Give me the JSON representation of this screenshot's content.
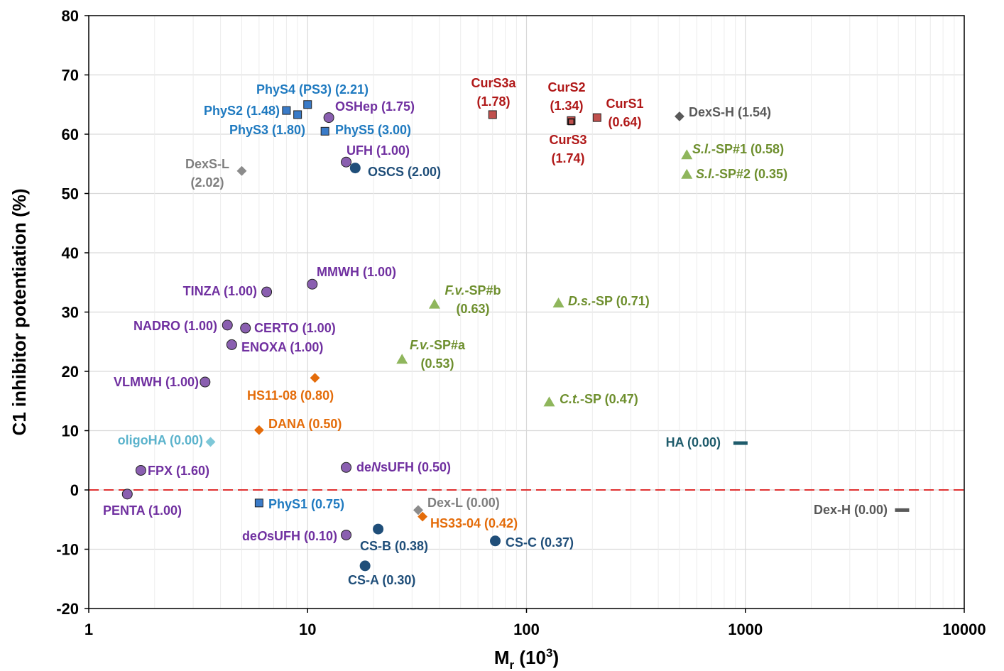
{
  "chart_data": {
    "type": "scatter",
    "title": "",
    "xlabel_main": "M",
    "xlabel_sub": "r",
    "xlabel_rest": " (10",
    "xlabel_sup": "3",
    "xlabel_end": ")",
    "ylabel": "C1 inhibitor potentiation (%)",
    "x_scale": "log",
    "xlim": [
      1,
      10000
    ],
    "ylim": [
      -20,
      80
    ],
    "x_ticks": [
      1,
      10,
      100,
      1000,
      10000
    ],
    "x_tick_labels": [
      "1",
      "10",
      "100",
      "1000",
      "10000"
    ],
    "y_ticks": [
      -20,
      -10,
      0,
      10,
      20,
      30,
      40,
      50,
      60,
      70,
      80
    ],
    "y_tick_labels": [
      "-20",
      "-10",
      "0",
      "10",
      "20",
      "30",
      "40",
      "50",
      "60",
      "70",
      "80"
    ],
    "grid": "on",
    "zero_line": {
      "value": 0,
      "color": "#e03030",
      "style": "dashed"
    },
    "colors": {
      "blue": "#3a7bc8",
      "blue_text": "#1f7ac0",
      "purple": "#8a5fb0",
      "purple_text": "#7030a0",
      "navy": "#1f4e79",
      "red": "#c0504d",
      "red_text": "#b01818",
      "green": "#8fb65c",
      "green_text": "#6e8f2e",
      "orange": "#e46c0a",
      "teal": "#1e5b6b",
      "gray_dark": "#595959",
      "gray": "#8c8c8c",
      "gray_text": "#7f7f7f",
      "cyan": "#7ec8d8"
    },
    "points": [
      {
        "name": "PhyS4 (PS3) (2.21)",
        "x": 10,
        "y": 65,
        "marker": "square",
        "color": "#3a7bc8",
        "text_color": "#1f7ac0"
      },
      {
        "name": "PhyS2 (1.48)",
        "x": 8,
        "y": 64,
        "marker": "square",
        "color": "#3a7bc8",
        "text_color": "#1f7ac0"
      },
      {
        "name": "PhyS3 (1.80)",
        "x": 9,
        "y": 63.3,
        "marker": "square",
        "color": "#3a7bc8",
        "text_color": "#1f7ac0"
      },
      {
        "name": "PhyS5 (3.00)",
        "x": 12,
        "y": 60.5,
        "marker": "square",
        "color": "#3a7bc8",
        "text_color": "#1f7ac0"
      },
      {
        "name": "PhyS1 (0.75)",
        "x": 6,
        "y": -2.2,
        "marker": "square",
        "color": "#3a7bc8",
        "text_color": "#1f7ac0"
      },
      {
        "name": "OSHep (1.75)",
        "x": 12.5,
        "y": 62.8,
        "marker": "circle",
        "color": "#8a5fb0",
        "text_color": "#7030a0"
      },
      {
        "name": "UFH (1.00)",
        "x": 15,
        "y": 55.3,
        "marker": "circle",
        "color": "#8a5fb0",
        "text_color": "#7030a0"
      },
      {
        "name": "OSCS (2.00)",
        "x": 16.5,
        "y": 54.3,
        "marker": "dot",
        "color": "#1f4e79",
        "text_color": "#1f4e79"
      },
      {
        "name": "DexS-L (2.02)",
        "label_lines": [
          "DexS-L",
          "(2.02)"
        ],
        "x": 5,
        "y": 53.8,
        "marker": "diamond",
        "color": "#8c8c8c",
        "text_color": "#7f7f7f"
      },
      {
        "name": "CurS3a (1.78)",
        "label_lines": [
          "CurS3a",
          "(1.78)"
        ],
        "x": 70,
        "y": 63.3,
        "marker": "square",
        "color": "#c0504d",
        "text_color": "#b01818"
      },
      {
        "name": "CurS2 (1.34)",
        "label_lines": [
          "CurS2",
          "(1.34)"
        ],
        "x": 160,
        "y": 62.3,
        "marker": "square",
        "color": "#c0504d",
        "text_color": "#b01818"
      },
      {
        "name": "CurS3 (1.74)",
        "label_lines": [
          "CurS3",
          "(1.74)"
        ],
        "x": 160,
        "y": 62.1,
        "marker": "square-open",
        "color": "#c0504d",
        "text_color": "#b01818"
      },
      {
        "name": "CurS1 (0.64)",
        "label_lines": [
          "CurS1",
          "(0.64)"
        ],
        "x": 210,
        "y": 62.8,
        "marker": "square",
        "color": "#c0504d",
        "text_color": "#b01818"
      },
      {
        "name": "DexS-H (1.54)",
        "x": 500,
        "y": 63,
        "marker": "diamond",
        "color": "#595959",
        "text_color": "#595959"
      },
      {
        "name": "S.l.-SP#1 (0.58)",
        "name_italic": "S.l.",
        "name_rest": "-SP#1 (0.58)",
        "x": 540,
        "y": 56.5,
        "marker": "triangle",
        "color": "#8fb65c",
        "text_color": "#6e8f2e"
      },
      {
        "name": "S.l.-SP#2 (0.35)",
        "name_italic": "S.l.",
        "name_rest": "-SP#2 (0.35)",
        "x": 540,
        "y": 53.2,
        "marker": "triangle",
        "color": "#8fb65c",
        "text_color": "#6e8f2e"
      },
      {
        "name": "MMWH (1.00)",
        "x": 10.5,
        "y": 34.7,
        "marker": "circle",
        "color": "#8a5fb0",
        "text_color": "#7030a0"
      },
      {
        "name": "TINZA (1.00)",
        "x": 6.5,
        "y": 33.4,
        "marker": "circle",
        "color": "#8a5fb0",
        "text_color": "#7030a0"
      },
      {
        "name": "NADRO (1.00)",
        "x": 4.3,
        "y": 27.8,
        "marker": "circle",
        "color": "#8a5fb0",
        "text_color": "#7030a0"
      },
      {
        "name": "CERTO (1.00)",
        "x": 5.2,
        "y": 27.3,
        "marker": "circle",
        "color": "#8a5fb0",
        "text_color": "#7030a0"
      },
      {
        "name": "ENOXA (1.00)",
        "x": 4.5,
        "y": 24.5,
        "marker": "circle",
        "color": "#8a5fb0",
        "text_color": "#7030a0"
      },
      {
        "name": "VLMWH (1.00)",
        "x": 3.4,
        "y": 18.2,
        "marker": "circle",
        "color": "#8a5fb0",
        "text_color": "#7030a0"
      },
      {
        "name": "F.v.-SP#b (0.63)",
        "name_italic": "F.v.",
        "name_rest": "-SP#b",
        "line2": "(0.63)",
        "x": 38,
        "y": 31.3,
        "marker": "triangle",
        "color": "#8fb65c",
        "text_color": "#6e8f2e"
      },
      {
        "name": "D.s.-SP (0.71)",
        "name_italic": "D.s.",
        "name_rest": "-SP (0.71)",
        "x": 140,
        "y": 31.5,
        "marker": "triangle",
        "color": "#8fb65c",
        "text_color": "#6e8f2e"
      },
      {
        "name": "F.v.-SP#a (0.53)",
        "name_italic": "F.v.",
        "name_rest": "-SP#a",
        "line2": "(0.53)",
        "x": 27,
        "y": 22,
        "marker": "triangle",
        "color": "#8fb65c",
        "text_color": "#6e8f2e"
      },
      {
        "name": "C.t.-SP (0.47)",
        "name_italic": "C.t.",
        "name_rest": "-SP (0.47)",
        "x": 127,
        "y": 14.8,
        "marker": "triangle",
        "color": "#8fb65c",
        "text_color": "#6e8f2e"
      },
      {
        "name": "HS11-08 (0.80)",
        "x": 10.8,
        "y": 18.9,
        "marker": "diamond",
        "color": "#e46c0a",
        "text_color": "#e46c0a"
      },
      {
        "name": "DANA (0.50)",
        "x": 6,
        "y": 10.1,
        "marker": "diamond",
        "color": "#e46c0a",
        "text_color": "#e46c0a"
      },
      {
        "name": "oligoHA (0.00)",
        "x": 3.6,
        "y": 8.1,
        "marker": "diamond",
        "color": "#7ec8d8",
        "text_color": "#5bb3cc"
      },
      {
        "name": "HA (0.00)",
        "x": 950,
        "y": 7.9,
        "marker": "dash",
        "color": "#1e5b6b",
        "text_color": "#1e5b6b"
      },
      {
        "name": "FPX (1.60)",
        "x": 1.73,
        "y": 3.3,
        "marker": "circle",
        "color": "#8a5fb0",
        "text_color": "#7030a0"
      },
      {
        "name": "deNsUFH (0.50)",
        "name_a": "de",
        "name_italic": "N",
        "name_rest": "sUFH (0.50)",
        "x": 15,
        "y": 3.8,
        "marker": "circle",
        "color": "#8a5fb0",
        "text_color": "#7030a0"
      },
      {
        "name": "PENTA (1.00)",
        "x": 1.5,
        "y": -0.7,
        "marker": "circle",
        "color": "#8a5fb0",
        "text_color": "#7030a0"
      },
      {
        "name": "Dex-L (0.00)",
        "x": 32,
        "y": -3.4,
        "marker": "diamond",
        "color": "#8c8c8c",
        "text_color": "#7f7f7f"
      },
      {
        "name": "HS33-04 (0.42)",
        "x": 33.5,
        "y": -4.5,
        "marker": "diamond",
        "color": "#e46c0a",
        "text_color": "#e46c0a"
      },
      {
        "name": "Dex-H (0.00)",
        "x": 5200,
        "y": -3.4,
        "marker": "dash",
        "color": "#595959",
        "text_color": "#595959"
      },
      {
        "name": "deOsUFH (0.10)",
        "name_a": "de",
        "name_italic": "O",
        "name_rest": "sUFH (0.10)",
        "x": 15,
        "y": -7.6,
        "marker": "circle",
        "color": "#8a5fb0",
        "text_color": "#7030a0"
      },
      {
        "name": "CS-B (0.38)",
        "x": 21,
        "y": -6.6,
        "marker": "dot",
        "color": "#1f4e79",
        "text_color": "#1f4e79"
      },
      {
        "name": "CS-C (0.37)",
        "x": 72,
        "y": -8.6,
        "marker": "dot",
        "color": "#1f4e79",
        "text_color": "#1f4e79"
      },
      {
        "name": "CS-A (0.30)",
        "x": 18.3,
        "y": -12.8,
        "marker": "dot",
        "color": "#1f4e79",
        "text_color": "#1f4e79"
      }
    ]
  }
}
